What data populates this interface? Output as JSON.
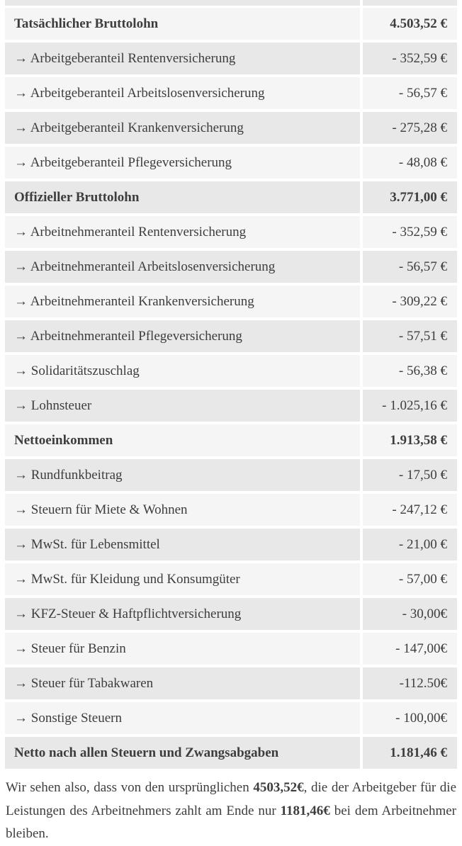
{
  "colors": {
    "row_light": "#f5f5f5",
    "row_dark": "#e8e8e8",
    "text": "#3d3d3d",
    "page_background": "#ffffff"
  },
  "table": {
    "rows": [
      {
        "label": "Tatsächlicher Bruttolohn",
        "value": "4.503,52 €",
        "bold": true
      },
      {
        "label": "→ Arbeitgeberanteil Rentenversicherung",
        "value": "- 352,59 €",
        "bold": false
      },
      {
        "label": "→ Arbeitgeberanteil Arbeitslosenversicherung",
        "value": "- 56,57 €",
        "bold": false
      },
      {
        "label": "→ Arbeitgeberanteil Krankenversicherung",
        "value": "- 275,28 €",
        "bold": false
      },
      {
        "label": "→ Arbeitgeberanteil Pflegeversicherung",
        "value": "- 48,08 €",
        "bold": false
      },
      {
        "label": "Offizieller Bruttolohn",
        "value": "3.771,00 €",
        "bold": true
      },
      {
        "label": "→ Arbeitnehmeranteil Rentenversicherung",
        "value": "- 352,59 €",
        "bold": false
      },
      {
        "label": "→ Arbeitnehmeranteil Arbeitslosenversicherung",
        "value": "- 56,57 €",
        "bold": false
      },
      {
        "label": "→ Arbeitnehmeranteil Krankenversicherung",
        "value": "- 309,22 €",
        "bold": false
      },
      {
        "label": "→ Arbeitnehmeranteil Pflegeversicherung",
        "value": "- 57,51 €",
        "bold": false
      },
      {
        "label": "→ Solidaritätszuschlag",
        "value": "- 56,38 €",
        "bold": false
      },
      {
        "label": "→ Lohnsteuer",
        "value": "- 1.025,16 €",
        "bold": false
      },
      {
        "label": "Nettoeinkommen",
        "value": "1.913,58 €",
        "bold": true
      },
      {
        "label": "→ Rundfunkbeitrag",
        "value": "- 17,50 €",
        "bold": false
      },
      {
        "label": "→ Steuern für Miete & Wohnen",
        "value": "- 247,12 €",
        "bold": false
      },
      {
        "label": "→ MwSt. für Lebensmittel",
        "value": "- 21,00 €",
        "bold": false
      },
      {
        "label": "→ MwSt. für Kleidung und Konsumgüter",
        "value": "- 57,00 €",
        "bold": false
      },
      {
        "label": "→ KFZ-Steuer & Haftpflichtversicherung",
        "value": "- 30,00€",
        "bold": false
      },
      {
        "label": "→ Steuer für Benzin",
        "value": "- 147,00€",
        "bold": false
      },
      {
        "label": "→ Steuer für Tabakwaren",
        "value": "-112.50€",
        "bold": false
      },
      {
        "label": "→ Sonstige Steuern",
        "value": "- 100,00€",
        "bold": false
      },
      {
        "label": "Netto nach allen Steuern und Zwangsabgaben",
        "value": "1.181,46 €",
        "bold": true
      }
    ]
  },
  "summary": {
    "segments": [
      {
        "text": "Wir sehen also, dass von den ursprünglichen ",
        "bold": false
      },
      {
        "text": "4503,52€",
        "bold": true
      },
      {
        "text": ", die der Arbeitgeber für die Leistungen des Arbeitnehmers zahlt am Ende nur ",
        "bold": false
      },
      {
        "text": "1181,46€",
        "bold": true
      },
      {
        "text": " bei dem Arbeitnehmer bleiben.",
        "bold": false
      }
    ]
  }
}
